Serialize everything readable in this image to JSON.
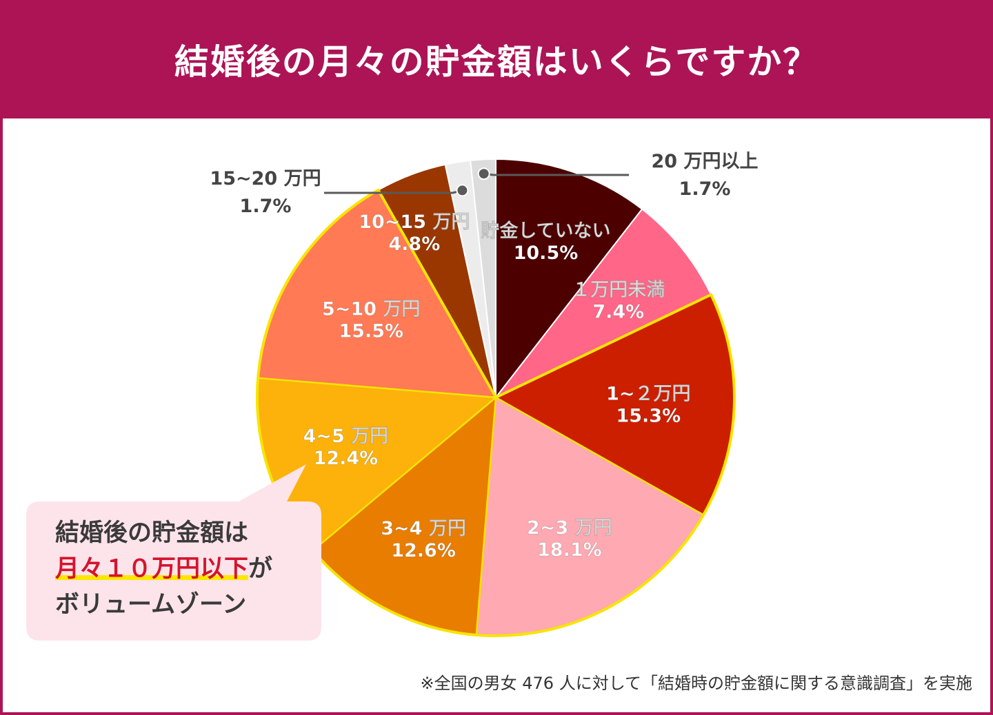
{
  "title": "結婚後の月々の貯金額はいくらですか？",
  "callout": {
    "line1": "結婚後の貯金額は",
    "highlight": "月々１０万円以下",
    "line2_suffix": "が",
    "line3": "ボリュームゾーン"
  },
  "footnote": "※全国の男女 476 人に対して「結婚時の貯金額に関する意識調査」を実施",
  "colors": {
    "header_bg": "#ac1456",
    "highlight_text": "#d4142e",
    "highlight_underline": "#ffe600",
    "callout_bg": "#fde4ea",
    "slice_border": "#f7e400"
  },
  "chart_data": {
    "type": "pie",
    "unit": "%",
    "slices": [
      {
        "label": "貯金していない",
        "value": 10.5,
        "value_label": "10.5%",
        "color": "#4c0000",
        "text_color": "#ffffff",
        "inside": true
      },
      {
        "label": "１万円未満",
        "value": 7.4,
        "value_label": "7.4%",
        "color": "#ff6687",
        "text_color": "#ffffff",
        "inside": true
      },
      {
        "label": "1~２万円",
        "value": 15.3,
        "value_label": "15.3%",
        "color": "#cc1f00",
        "text_color": "#ffffff",
        "inside": true
      },
      {
        "label": "2~3 万円",
        "value": 18.1,
        "value_label": "18.1%",
        "color": "#ffa9b2",
        "text_color": "#ffffff",
        "inside": true
      },
      {
        "label": "3~4 万円",
        "value": 12.6,
        "value_label": "12.6%",
        "color": "#e87d00",
        "text_color": "#ffffff",
        "inside": true
      },
      {
        "label": "4~5 万円",
        "value": 12.4,
        "value_label": "12.4%",
        "color": "#fcb20a",
        "text_color": "#ffffff",
        "inside": true
      },
      {
        "label": "5~10 万円",
        "value": 15.5,
        "value_label": "15.5%",
        "color": "#ff7a55",
        "text_color": "#ffffff",
        "inside": true
      },
      {
        "label": "10~15 万円",
        "value": 4.8,
        "value_label": "4.8%",
        "color": "#9a3700",
        "text_color": "#ffffff",
        "inside": true
      },
      {
        "label": "15~20 万円",
        "value": 1.7,
        "value_label": "1.7%",
        "color": "#ececec",
        "text_color": "#444444",
        "inside": false
      },
      {
        "label": "20 万円以上",
        "value": 1.7,
        "value_label": "1.7%",
        "color": "#dcdcdc",
        "text_color": "#444444",
        "inside": false
      }
    ],
    "start": "12 o'clock",
    "direction": "clockwise",
    "outlined_group": [
      "1~２万円",
      "2~3 万円",
      "3~4 万円",
      "4~5 万円",
      "5~10 万円"
    ]
  }
}
